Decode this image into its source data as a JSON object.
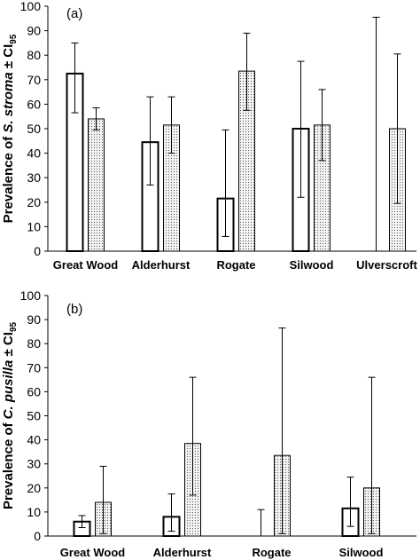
{
  "chart_data": [
    {
      "type": "bar",
      "panel_label": "(a)",
      "ylabel_prefix": "Prevalence of ",
      "ylabel_species": "S. stroma",
      "ylabel_suffix": " ± CI",
      "ylabel_subscript": "95",
      "ylim": [
        0,
        100
      ],
      "yticks": [
        "0",
        "10",
        "20",
        "30",
        "40",
        "50",
        "60",
        "70",
        "80",
        "90",
        "100"
      ],
      "grid": false,
      "categories": [
        "Great Wood",
        "Alderhurst",
        "Rogate",
        "Silwood",
        "Ulverscroft"
      ],
      "series": [
        {
          "fill": "plain",
          "values": [
            72.5,
            44.5,
            21.5,
            50,
            0
          ],
          "ci_low": [
            56.5,
            27,
            6,
            22,
            0
          ],
          "ci_high": [
            85,
            63,
            49.5,
            77.5,
            95.5
          ]
        },
        {
          "fill": "dotted",
          "values": [
            54,
            51.5,
            73.5,
            51.5,
            50
          ],
          "ci_low": [
            49.5,
            40,
            57.5,
            37,
            19.5
          ],
          "ci_high": [
            58.5,
            63,
            89,
            66,
            80.5
          ]
        }
      ]
    },
    {
      "type": "bar",
      "panel_label": "(b)",
      "ylabel_prefix": "Prevalence of ",
      "ylabel_species": "C. pusilla",
      "ylabel_suffix": " ± CI",
      "ylabel_subscript": "95",
      "ylim": [
        0,
        100
      ],
      "yticks": [
        "0",
        "10",
        "20",
        "30",
        "40",
        "50",
        "60",
        "70",
        "80",
        "90",
        "100"
      ],
      "grid": false,
      "categories": [
        "Great Wood",
        "Alderhurst",
        "Rogate",
        "Silwood"
      ],
      "series": [
        {
          "fill": "plain",
          "values": [
            6,
            8,
            0,
            11.5
          ],
          "ci_low": [
            3.5,
            2,
            0,
            4
          ],
          "ci_high": [
            8.5,
            17.5,
            11,
            24.5
          ]
        },
        {
          "fill": "dotted",
          "values": [
            14,
            38.5,
            33.5,
            20
          ],
          "ci_low": [
            1,
            17,
            1,
            1
          ],
          "ci_high": [
            29,
            66,
            86.5,
            66
          ]
        }
      ]
    }
  ]
}
